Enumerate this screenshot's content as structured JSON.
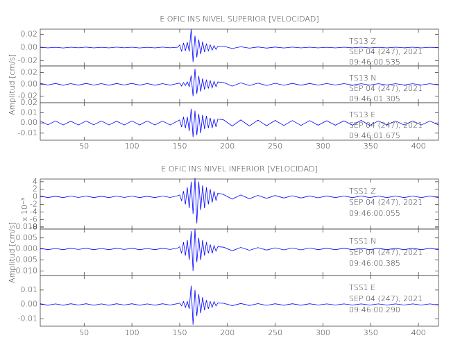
{
  "chart_data": [
    {
      "type": "line",
      "title": "E OFIC INS NIVEL SUPERIOR [VELOCIDAD]",
      "ylabel": "Amplitud [cm/s]",
      "xlim": [
        4,
        421
      ],
      "xticks": [
        50,
        100,
        150,
        200,
        250,
        300,
        350,
        400
      ],
      "x": [
        4,
        12,
        20,
        28,
        36,
        44,
        52,
        60,
        68,
        76,
        84,
        92,
        100,
        108,
        116,
        124,
        132,
        140,
        148,
        150,
        152,
        154,
        156,
        158,
        160,
        162,
        164,
        166,
        168,
        170,
        172,
        174,
        176,
        178,
        180,
        182,
        184,
        186,
        188,
        190,
        196,
        205,
        214,
        223,
        232,
        241,
        250,
        259,
        268,
        277,
        286,
        295,
        304,
        313,
        322,
        331,
        340,
        349,
        358,
        367,
        376,
        385,
        394,
        403,
        412,
        421
      ],
      "panels": [
        {
          "name": "TS13   Z",
          "date": "SEP 04 (247), 2021",
          "time": "09:46:00.535",
          "color": "#0000ff",
          "ylim": [
            -0.028,
            0.028
          ],
          "yticks": [
            0.02,
            {
              "value": 0,
              "label": "0.00"
            },
            -0.02
          ],
          "values": [
            0.0006,
            -0.0005,
            0.0004,
            -0.0006,
            0.0005,
            -0.0004,
            0.0006,
            -0.0005,
            0.0004,
            -0.0005,
            0.0006,
            -0.0004,
            0.0005,
            -0.0006,
            0.0004,
            -0.0005,
            0.0006,
            -0.0004,
            0.0005,
            0.004,
            -0.006,
            0.007,
            -0.005,
            0.008,
            -0.006,
            0.028,
            -0.022,
            0.018,
            -0.015,
            0.012,
            -0.01,
            0.009,
            -0.007,
            0.006,
            -0.005,
            0.004,
            -0.004,
            0.003,
            -0.003,
            0.002,
            0.002,
            -0.0015,
            0.0012,
            -0.001,
            0.0008,
            -0.0008,
            0.0007,
            -0.0006,
            0.0006,
            -0.0005,
            0.0005,
            -0.0005,
            0.0004,
            -0.0005,
            0.0005,
            -0.0004,
            0.0005,
            -0.0005,
            0.0004,
            -0.0005,
            0.0005,
            -0.0004,
            0.0005,
            -0.0005,
            0.0004,
            -0.0004
          ]
        },
        {
          "name": "TS13   N",
          "date": "SEP 04 (247), 2021",
          "time": "09:46:01.305",
          "color": "#0000ff",
          "ylim": [
            -0.031,
            0.031
          ],
          "yticks": [
            0.02,
            {
              "value": 0,
              "label": "0.00"
            },
            -0.02
          ],
          "values": [
            0.0015,
            -0.0012,
            0.0014,
            -0.0015,
            0.0012,
            -0.0014,
            0.0015,
            -0.0013,
            0.0012,
            -0.0015,
            0.0014,
            -0.0012,
            0.0015,
            -0.0014,
            0.0013,
            -0.0015,
            0.0012,
            -0.0014,
            0.0015,
            0.002,
            -0.003,
            0.003,
            -0.002,
            0.004,
            -0.004,
            0.015,
            -0.02,
            0.026,
            -0.016,
            0.014,
            -0.012,
            0.01,
            -0.009,
            0.008,
            -0.007,
            0.006,
            -0.006,
            0.005,
            -0.004,
            0.004,
            0.003,
            -0.003,
            0.0025,
            -0.002,
            0.002,
            -0.002,
            0.0018,
            -0.0016,
            0.0015,
            -0.0015,
            0.0014,
            -0.0013,
            0.0013,
            -0.0012,
            0.0012,
            -0.0012,
            0.0011,
            -0.0012,
            0.0011,
            -0.001,
            0.0011,
            -0.001,
            0.001,
            -0.001,
            0.001,
            -0.001
          ]
        },
        {
          "name": "TS13   E",
          "date": "SEP 04 (247), 2021",
          "time": "09:46:01.675",
          "color": "#0000ff",
          "ylim": [
            -0.017,
            0.02
          ],
          "yticks": [
            0.02,
            0.01,
            {
              "value": 0,
              "label": "0.00"
            },
            -0.01
          ],
          "values": [
            0.002,
            -0.0018,
            0.002,
            -0.002,
            0.0018,
            -0.002,
            0.002,
            -0.0018,
            0.002,
            -0.002,
            0.0018,
            -0.002,
            0.002,
            -0.0019,
            0.002,
            -0.002,
            0.0019,
            -0.002,
            0.002,
            0.003,
            -0.004,
            0.006,
            -0.005,
            0.006,
            -0.008,
            0.014,
            -0.014,
            0.012,
            -0.012,
            0.009,
            -0.01,
            0.008,
            -0.006,
            0.007,
            -0.005,
            0.005,
            -0.005,
            0.004,
            -0.004,
            0.004,
            0.003,
            -0.003,
            0.003,
            -0.003,
            0.0028,
            -0.0027,
            0.0025,
            -0.0025,
            0.0024,
            -0.0024,
            0.0023,
            -0.0022,
            0.0022,
            -0.0022,
            0.0021,
            -0.0021,
            0.0025,
            -0.0024,
            0.002,
            -0.002,
            0.002,
            -0.002,
            0.002,
            -0.002,
            0.0019,
            -0.0019
          ]
        }
      ]
    },
    {
      "type": "line",
      "title": "E OFIC INS NIVEL INFERIOR [VELOCIDAD]",
      "ylabel": "Amplitud [cm/s]",
      "xlim": [
        4,
        421
      ],
      "xticks": [
        50,
        100,
        150,
        200,
        250,
        300,
        350,
        400
      ],
      "x": [
        4,
        12,
        20,
        28,
        36,
        44,
        52,
        60,
        68,
        76,
        84,
        92,
        100,
        108,
        116,
        124,
        132,
        140,
        148,
        150,
        152,
        154,
        156,
        158,
        160,
        162,
        164,
        166,
        168,
        170,
        172,
        174,
        176,
        178,
        180,
        182,
        184,
        186,
        188,
        190,
        196,
        205,
        214,
        223,
        232,
        241,
        250,
        259,
        268,
        277,
        286,
        295,
        304,
        313,
        322,
        331,
        340,
        349,
        358,
        367,
        376,
        385,
        394,
        403,
        412,
        421
      ],
      "panels": [
        {
          "name": "TSS1   Z",
          "date": "SEP 04 (247), 2021",
          "time": "09:46:00.055",
          "color": "#0000ff",
          "scale_label": "x 10⁻³",
          "ylim": [
            -8.5,
            4.7
          ],
          "yticks": [
            4,
            2,
            0,
            -2,
            -4,
            -6,
            -8
          ],
          "values": [
            0.2,
            -0.2,
            0.15,
            -0.2,
            0.2,
            -0.15,
            0.2,
            -0.2,
            0.15,
            -0.2,
            0.2,
            -0.15,
            0.2,
            -0.2,
            0.15,
            -0.2,
            0.2,
            -0.15,
            0.3,
            0.5,
            -1,
            1.5,
            -2,
            2.5,
            -3,
            4,
            -4.5,
            5,
            -7,
            4,
            -3.5,
            3,
            -3,
            2.5,
            -2,
            2,
            -1.5,
            1.5,
            -1,
            1,
            0.6,
            -0.6,
            0.5,
            -0.5,
            0.4,
            -0.4,
            0.35,
            -0.3,
            0.3,
            -0.3,
            0.25,
            -0.25,
            0.25,
            -0.2,
            0.2,
            -0.2,
            0.2,
            -0.2,
            0.2,
            -0.2,
            0.2,
            -0.2,
            0.2,
            -0.2,
            0.2,
            -0.2
          ]
        },
        {
          "name": "TSS1   N",
          "date": "SEP 04 (247), 2021",
          "time": "09:46:00.385",
          "color": "#0000ff",
          "ylim": [
            -0.012,
            0.009
          ],
          "yticks": [
            {
              "value": 0.01,
              "label": "0.010"
            },
            0.005,
            {
              "value": 0,
              "label": "0.000"
            },
            -0.005,
            {
              "value": -0.01,
              "label": "-0.010"
            }
          ],
          "values": [
            0.0003,
            -0.0003,
            0.0002,
            -0.0003,
            0.0003,
            -0.0002,
            0.0003,
            -0.0003,
            0.0002,
            -0.0003,
            0.0003,
            -0.0002,
            0.0003,
            -0.0003,
            0.0002,
            -0.0003,
            0.0003,
            -0.0002,
            0.0004,
            0.001,
            -0.002,
            0.003,
            -0.003,
            0.004,
            -0.005,
            0.008,
            -0.01,
            0.009,
            -0.006,
            0.005,
            -0.005,
            0.004,
            -0.003,
            0.003,
            -0.002,
            0.002,
            -0.002,
            0.0015,
            -0.001,
            0.001,
            0.0008,
            -0.0008,
            0.0007,
            -0.0006,
            0.0006,
            -0.0005,
            0.0005,
            -0.0004,
            0.0004,
            -0.0004,
            0.0004,
            -0.0003,
            0.0003,
            -0.0003,
            0.0003,
            -0.0003,
            0.0003,
            -0.0003,
            0.0003,
            -0.0003,
            0.0003,
            -0.0003,
            0.0003,
            -0.0003,
            0.0003,
            -0.0003
          ]
        },
        {
          "name": "TSS1   E",
          "date": "SEP 04 (247), 2021",
          "time": "09:46:00.290",
          "color": "#0000ff",
          "ylim": [
            -0.015,
            0.02
          ],
          "yticks": [
            0.01,
            {
              "value": 0,
              "label": "0.00"
            },
            -0.01
          ],
          "values": [
            0.0005,
            -0.0005,
            0.0004,
            -0.0005,
            0.0005,
            -0.0004,
            0.0005,
            -0.0005,
            0.0004,
            -0.0005,
            0.0005,
            -0.0004,
            0.0005,
            -0.0005,
            0.0004,
            -0.0005,
            0.0005,
            -0.0004,
            0.0006,
            0.001,
            -0.001,
            0.002,
            -0.002,
            0.002,
            -0.003,
            0.013,
            -0.014,
            0.01,
            -0.008,
            0.007,
            -0.006,
            0.005,
            -0.004,
            0.003,
            -0.003,
            0.002,
            -0.002,
            0.002,
            -0.001,
            0.001,
            0.0008,
            -0.0008,
            0.0007,
            -0.0007,
            0.0006,
            -0.0006,
            0.0005,
            -0.0005,
            0.0005,
            -0.0005,
            0.0005,
            -0.0004,
            0.0004,
            -0.0004,
            0.0004,
            -0.0004,
            0.0004,
            -0.0004,
            0.0004,
            -0.0004,
            0.0004,
            -0.0004,
            0.0004,
            -0.0004,
            0.0004,
            -0.0004
          ]
        }
      ]
    }
  ]
}
